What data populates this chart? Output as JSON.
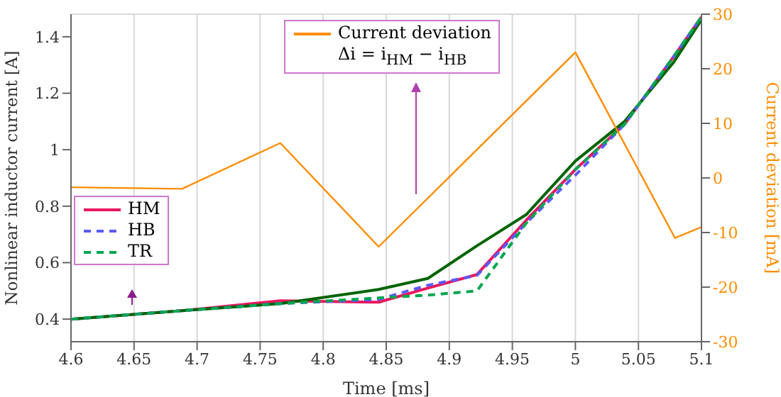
{
  "chart_data": {
    "type": "line",
    "x": [
      4.6,
      4.688,
      4.766,
      4.844,
      4.883,
      4.922,
      4.961,
      5.0,
      5.039,
      5.078,
      5.1
    ],
    "series": [
      {
        "name": "HM",
        "color": "#e8175d",
        "line_style": "solid",
        "values": [
          0.4,
          0.43,
          0.465,
          0.46,
          0.51,
          0.558,
          0.75,
          0.93,
          1.09,
          1.33,
          1.47
        ]
      },
      {
        "color": "#006400",
        "line_style": "solid",
        "values": [
          0.4,
          0.43,
          0.455,
          0.505,
          0.544,
          0.66,
          0.77,
          0.96,
          1.1,
          1.31,
          1.46
        ]
      },
      {
        "name": "HB",
        "color": "#5a5aff",
        "line_style": "dashed",
        "values": [
          0.4,
          0.43,
          0.455,
          0.47,
          0.52,
          0.555,
          0.74,
          0.91,
          1.09,
          1.33,
          1.47
        ]
      },
      {
        "name": "TR",
        "color": "#00a650",
        "line_style": "dashed",
        "values": [
          0.4,
          0.43,
          0.455,
          0.475,
          0.485,
          0.5,
          0.74,
          0.93,
          1.09,
          1.33,
          1.47
        ]
      },
      {
        "name": "Current deviation",
        "color": "#ff8c00",
        "line_style": "solid",
        "axis": "y2",
        "x": [
          4.6,
          4.688,
          4.766,
          4.844,
          5.0,
          5.079,
          5.1
        ],
        "values": [
          -1.7,
          -2,
          6.4,
          -12.6,
          23,
          -11,
          -9
        ]
      }
    ],
    "xlabel": "Time [ms]",
    "ylabel": "Nonlinear inductor current [A]",
    "y2label": "Current deviation [mA]",
    "annotations": [
      "Δi = i$_{HM}$ − i$_{HB}$"
    ],
    "xlim": [
      4.6,
      5.1
    ],
    "xticks": [
      4.6,
      4.65,
      4.7,
      4.75,
      4.8,
      4.85,
      4.9,
      4.95,
      5,
      5.05,
      5.1
    ],
    "ylim": [
      0.32,
      1.48
    ],
    "yticks": [
      0.4,
      0.6,
      0.8,
      1,
      1.2,
      1.4
    ],
    "y2lim": [
      -30,
      30
    ],
    "y2ticks": [
      -30,
      -20,
      -10,
      0,
      10,
      20,
      30
    ],
    "grid": true,
    "legend": "left",
    "marker": "none"
  }
}
